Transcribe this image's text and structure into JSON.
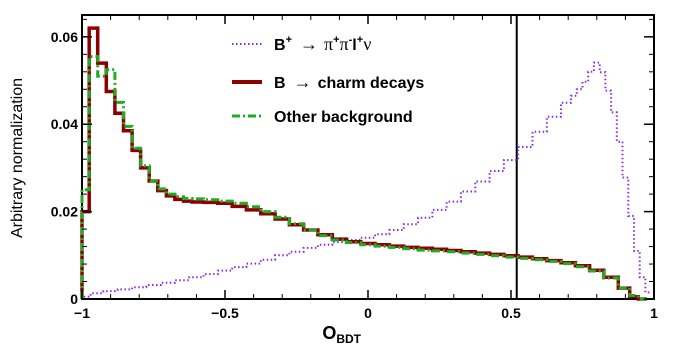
{
  "chart_data": {
    "type": "line",
    "xlabel": "O",
    "xlabel_sub": "BDT",
    "ylabel": "Arbitrary normalization",
    "xlim": [
      -1,
      1
    ],
    "ylim": [
      0,
      0.065
    ],
    "x_tick_labels": [
      "−1",
      "−0.5",
      "0",
      "0.5",
      "1"
    ],
    "y_tick_labels": [
      "0",
      "0.02",
      "0.04",
      "0.06"
    ],
    "x_ticks": [
      -1,
      -0.5,
      0,
      0.5,
      1
    ],
    "y_ticks": [
      0,
      0.02,
      0.04,
      0.06
    ],
    "cut_line_x": 0.52,
    "legend": [
      {
        "label": "B⁺ → π⁺π⁻l⁺ν",
        "label_parts": {
          "main": "B",
          "sup1": "+",
          "arrow": "→",
          "rest": "π",
          "sup2": "+",
          "rest2": "π",
          "sup3": "-",
          "rest3": "l",
          "sup4": "+",
          "rest4": "ν"
        },
        "color": "#8a2be2",
        "style": "dotted"
      },
      {
        "label": "B → charm decays",
        "label_parts": {
          "main": "B",
          "arrow": "→",
          "rest": "charm decays"
        },
        "color": "#8b0000",
        "style": "solid"
      },
      {
        "label": "Other background",
        "color": "#22aa22",
        "style": "dashdot"
      }
    ],
    "series": [
      {
        "name": "B⁺ → π⁺π⁻l⁺ν",
        "color": "#8a2be2",
        "style": "dotted",
        "x": [
          -0.99,
          -0.95,
          -0.9,
          -0.85,
          -0.8,
          -0.75,
          -0.7,
          -0.65,
          -0.6,
          -0.55,
          -0.5,
          -0.45,
          -0.4,
          -0.35,
          -0.3,
          -0.25,
          -0.2,
          -0.15,
          -0.1,
          -0.05,
          0.0,
          0.05,
          0.1,
          0.15,
          0.2,
          0.25,
          0.3,
          0.35,
          0.4,
          0.45,
          0.5,
          0.55,
          0.6,
          0.65,
          0.7,
          0.72,
          0.74,
          0.76,
          0.78,
          0.8,
          0.82,
          0.84,
          0.86,
          0.88,
          0.9,
          0.92,
          0.94,
          0.96,
          0.98
        ],
        "y": [
          0.0005,
          0.0013,
          0.0018,
          0.0022,
          0.0027,
          0.0032,
          0.0037,
          0.0043,
          0.005,
          0.0057,
          0.0065,
          0.0073,
          0.0081,
          0.009,
          0.01,
          0.0108,
          0.0117,
          0.0124,
          0.013,
          0.0135,
          0.014,
          0.0148,
          0.0158,
          0.0171,
          0.0186,
          0.0204,
          0.0223,
          0.0246,
          0.0269,
          0.0293,
          0.0318,
          0.0348,
          0.0383,
          0.0417,
          0.0449,
          0.0465,
          0.048,
          0.0497,
          0.052,
          0.0541,
          0.0519,
          0.0477,
          0.0427,
          0.036,
          0.0278,
          0.019,
          0.011,
          0.005,
          0.0015
        ]
      },
      {
        "name": "B → charm decays",
        "color": "#8b0000",
        "style": "solid",
        "x": [
          -0.99,
          -0.96,
          -0.93,
          -0.9,
          -0.87,
          -0.84,
          -0.81,
          -0.78,
          -0.75,
          -0.72,
          -0.69,
          -0.66,
          -0.63,
          -0.6,
          -0.55,
          -0.5,
          -0.45,
          -0.4,
          -0.35,
          -0.3,
          -0.25,
          -0.2,
          -0.15,
          -0.1,
          -0.05,
          0.0,
          0.05,
          0.1,
          0.15,
          0.2,
          0.25,
          0.3,
          0.35,
          0.4,
          0.45,
          0.5,
          0.55,
          0.6,
          0.65,
          0.7,
          0.75,
          0.8,
          0.85,
          0.9,
          0.93,
          0.96
        ],
        "y": [
          0.02,
          0.062,
          0.054,
          0.0475,
          0.0425,
          0.0385,
          0.034,
          0.03,
          0.027,
          0.0248,
          0.0236,
          0.0228,
          0.0224,
          0.0222,
          0.0221,
          0.0219,
          0.0212,
          0.0204,
          0.0195,
          0.0183,
          0.017,
          0.0158,
          0.0147,
          0.0137,
          0.0131,
          0.0127,
          0.0124,
          0.0121,
          0.0118,
          0.0116,
          0.0114,
          0.0111,
          0.0108,
          0.0105,
          0.0102,
          0.0099,
          0.0096,
          0.0092,
          0.0088,
          0.0083,
          0.0076,
          0.0066,
          0.005,
          0.0025,
          0.0005,
          0.0
        ]
      },
      {
        "name": "Other background",
        "color": "#22aa22",
        "style": "dashdot",
        "x": [
          -0.99,
          -0.96,
          -0.93,
          -0.9,
          -0.87,
          -0.84,
          -0.81,
          -0.78,
          -0.75,
          -0.72,
          -0.69,
          -0.66,
          -0.63,
          -0.6,
          -0.55,
          -0.5,
          -0.45,
          -0.4,
          -0.35,
          -0.3,
          -0.25,
          -0.2,
          -0.15,
          -0.1,
          -0.05,
          0.0,
          0.05,
          0.1,
          0.15,
          0.2,
          0.25,
          0.3,
          0.35,
          0.4,
          0.45,
          0.5,
          0.55,
          0.6,
          0.65,
          0.7,
          0.75,
          0.8,
          0.85,
          0.9,
          0.93,
          0.96
        ],
        "y": [
          0.025,
          0.0555,
          0.051,
          0.0525,
          0.045,
          0.0395,
          0.0345,
          0.0305,
          0.027,
          0.0252,
          0.024,
          0.0234,
          0.023,
          0.0229,
          0.0227,
          0.0224,
          0.0219,
          0.0211,
          0.02,
          0.0187,
          0.0172,
          0.0158,
          0.0145,
          0.0135,
          0.0129,
          0.0124,
          0.0121,
          0.0118,
          0.0115,
          0.0112,
          0.011,
          0.0108,
          0.0105,
          0.0102,
          0.0099,
          0.0096,
          0.0093,
          0.009,
          0.0086,
          0.0081,
          0.0074,
          0.0064,
          0.0048,
          0.0025,
          0.0008,
          0.0
        ]
      }
    ]
  }
}
